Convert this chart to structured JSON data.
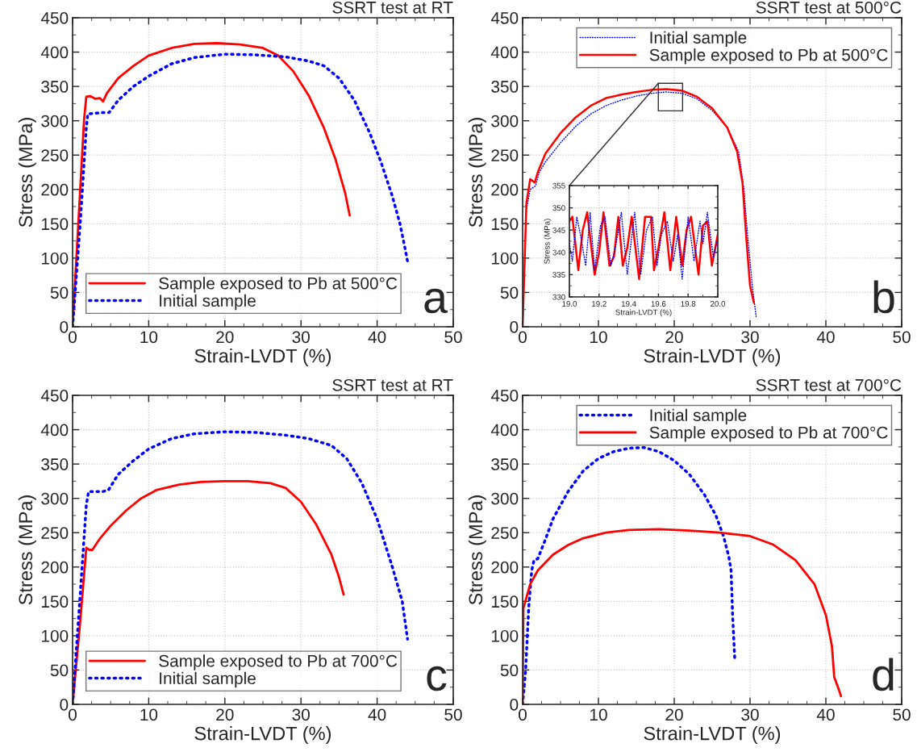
{
  "chart_data": [
    {
      "type": "line",
      "title": "SSRT test at RT",
      "xlabel": "Strain-LVDT (%)",
      "ylabel": "Stress (MPa)",
      "xlim": [
        0,
        50
      ],
      "ylim": [
        0,
        450
      ],
      "xticks": [
        0,
        10,
        20,
        30,
        40,
        50
      ],
      "yticks": [
        0,
        50,
        100,
        150,
        200,
        250,
        300,
        350,
        400,
        450
      ],
      "grid": true,
      "legend": "bottom left",
      "annotations": [
        "a"
      ],
      "series": [
        {
          "name": "Sample exposed to Pb at 500°C",
          "color": "#ff0000",
          "line_style": "solid",
          "x": [
            0,
            1.5,
            1.8,
            2.3,
            3,
            3.6,
            4,
            4.5,
            6,
            8,
            10,
            13,
            16,
            19,
            22,
            25,
            27,
            29,
            31,
            33,
            34.5,
            35.8,
            36.4
          ],
          "values": [
            0,
            300,
            335,
            336,
            332,
            333,
            328,
            340,
            362,
            380,
            395,
            406,
            412,
            413,
            411,
            406,
            395,
            372,
            337,
            290,
            245,
            195,
            162
          ]
        },
        {
          "name": "Initial sample",
          "color": "#0000ff",
          "line_style": "dotted",
          "x": [
            0,
            1,
            1.8,
            2,
            4,
            4.8,
            6,
            8,
            10,
            13,
            16,
            20,
            24,
            28,
            31,
            33,
            35,
            37,
            39,
            40.5,
            42,
            43,
            43.6,
            44
          ],
          "values": [
            0,
            150,
            290,
            310,
            312,
            312,
            330,
            350,
            365,
            383,
            392,
            397,
            396,
            393,
            387,
            380,
            362,
            330,
            283,
            240,
            190,
            150,
            118,
            95
          ]
        }
      ]
    },
    {
      "type": "line",
      "title": "SSRT test at 500°C",
      "xlabel": "Strain-LVDT (%)",
      "ylabel": "Stress (MPa)",
      "xlim": [
        0,
        50
      ],
      "ylim": [
        0,
        450
      ],
      "xticks": [
        0,
        10,
        20,
        30,
        40,
        50
      ],
      "yticks": [
        0,
        50,
        100,
        150,
        200,
        250,
        300,
        350,
        400,
        450
      ],
      "grid": true,
      "legend": "top right",
      "annotations": [
        "b"
      ],
      "series": [
        {
          "name": "Initial sample",
          "color": "#0000ff",
          "line_style": "dotted",
          "x": [
            0,
            0.5,
            1,
            1.7,
            2.2,
            3,
            5,
            7,
            9,
            11,
            13,
            15,
            17,
            19,
            21,
            23,
            25,
            27,
            28.5,
            29.2,
            29.7,
            30.3,
            30.8
          ],
          "values": [
            0,
            170,
            200,
            205,
            225,
            240,
            268,
            292,
            310,
            322,
            330,
            336,
            340,
            342,
            340,
            332,
            315,
            290,
            255,
            200,
            130,
            60,
            15
          ]
        },
        {
          "name": "Sample exposed to Pb at 500°C",
          "color": "#ff0000",
          "line_style": "solid",
          "x": [
            0,
            0.5,
            1,
            1.6,
            2,
            3,
            5,
            7,
            9,
            11,
            13,
            15,
            17,
            19,
            21,
            23,
            25,
            27,
            28.3,
            29,
            29.5,
            30,
            30.5
          ],
          "values": [
            0,
            180,
            215,
            210,
            225,
            252,
            282,
            305,
            322,
            333,
            338,
            342,
            345,
            346,
            344,
            335,
            318,
            290,
            255,
            210,
            130,
            60,
            35
          ]
        }
      ]
    },
    {
      "type": "line",
      "xlabel": "Strain-LVDT (%)",
      "ylabel": "Stress (MPa)",
      "xlim": [
        19.0,
        20.0
      ],
      "ylim": [
        330,
        355
      ],
      "xticks": [
        {
          "value": 19.0,
          "label": "19.0"
        },
        {
          "value": 19.2,
          "label": "19.2"
        },
        {
          "value": 19.4,
          "label": "19.4"
        },
        {
          "value": 19.6,
          "label": "19.6"
        },
        {
          "value": 19.8,
          "label": "19.8"
        },
        {
          "value": 20.0,
          "label": "20.0"
        }
      ],
      "yticks": [
        330,
        335,
        340,
        345,
        350,
        355
      ],
      "grid": true,
      "series": [
        {
          "color": "#ff0000",
          "line_style": "solid",
          "x": [
            19.0,
            19.02,
            19.06,
            19.09,
            19.12,
            19.17,
            19.2,
            19.23,
            19.27,
            19.3,
            19.33,
            19.36,
            19.39,
            19.42,
            19.47,
            19.51,
            19.55,
            19.57,
            19.6,
            19.64,
            19.68,
            19.72,
            19.76,
            19.79,
            19.82,
            19.87,
            19.9,
            19.93,
            19.96,
            20.0
          ],
          "values": [
            347,
            348,
            336,
            345,
            349,
            335,
            340,
            349,
            337,
            339,
            348,
            337,
            341,
            348,
            334,
            348,
            348,
            336,
            341,
            349,
            336,
            348,
            337,
            345,
            348,
            335,
            346,
            347,
            337,
            344
          ]
        },
        {
          "color": "#0000ff",
          "line_style": "dotted",
          "x": [
            19.0,
            19.02,
            19.05,
            19.08,
            19.11,
            19.14,
            19.17,
            19.21,
            19.24,
            19.28,
            19.31,
            19.35,
            19.39,
            19.44,
            19.48,
            19.52,
            19.56,
            19.59,
            19.62,
            19.66,
            19.7,
            19.73,
            19.76,
            19.8,
            19.84,
            19.88,
            19.9,
            19.93,
            19.97,
            20.0
          ],
          "values": [
            342,
            338,
            348,
            343,
            337,
            349,
            336,
            346,
            348,
            337,
            341,
            349,
            335,
            349,
            335,
            345,
            348,
            337,
            344,
            347,
            338,
            344,
            334,
            348,
            338,
            347,
            342,
            349,
            339,
            343
          ]
        }
      ]
    },
    {
      "type": "line",
      "title": "SSRT test at RT",
      "xlabel": "Strain-LVDT (%)",
      "ylabel": "Stress (MPa)",
      "xlim": [
        0,
        50
      ],
      "ylim": [
        0,
        450
      ],
      "xticks": [
        0,
        10,
        20,
        30,
        40,
        50
      ],
      "yticks": [
        0,
        50,
        100,
        150,
        200,
        250,
        300,
        350,
        400,
        450
      ],
      "grid": true,
      "legend": "bottom left",
      "annotations": [
        "c"
      ],
      "series": [
        {
          "name": "Sample exposed to Pb at 700°C",
          "color": "#ff0000",
          "line_style": "solid",
          "x": [
            0,
            1,
            1.8,
            2.2,
            2.6,
            3.5,
            5,
            7,
            9,
            11,
            14,
            17,
            20,
            23,
            26,
            28,
            30,
            32,
            34,
            35,
            35.6
          ],
          "values": [
            0,
            120,
            228,
            225,
            225,
            240,
            260,
            282,
            300,
            312,
            320,
            324,
            325,
            325,
            322,
            315,
            295,
            262,
            218,
            185,
            160
          ]
        },
        {
          "name": "Initial sample",
          "color": "#0000ff",
          "line_style": "dotted",
          "x": [
            0,
            1,
            1.8,
            2.1,
            4,
            4.7,
            6,
            8,
            10,
            13,
            16,
            20,
            24,
            28,
            31,
            34,
            36,
            38,
            40,
            42,
            43.3,
            44
          ],
          "values": [
            0,
            160,
            290,
            310,
            310,
            312,
            335,
            355,
            372,
            387,
            394,
            397,
            396,
            392,
            387,
            377,
            358,
            322,
            270,
            200,
            150,
            95
          ]
        }
      ]
    },
    {
      "type": "line",
      "title": "SSRT test at 700°C",
      "xlabel": "Strain-LVDT (%)",
      "ylabel": "Stress (MPa)",
      "xlim": [
        0,
        50
      ],
      "ylim": [
        0,
        450
      ],
      "xticks": [
        0,
        10,
        20,
        30,
        40,
        50
      ],
      "yticks": [
        0,
        50,
        100,
        150,
        200,
        250,
        300,
        350,
        400,
        450
      ],
      "grid": true,
      "legend": "top right",
      "annotations": [
        "d"
      ],
      "series": [
        {
          "name": "Initial sample",
          "color": "#0000ff",
          "line_style": "dotted",
          "x": [
            0,
            0.4,
            0.8,
            1.2,
            1.5,
            2,
            3,
            4,
            6,
            8,
            10,
            12,
            14,
            16,
            18,
            20,
            22,
            24,
            25.5,
            26.5,
            27.2,
            27.5,
            27.7,
            28
          ],
          "values": [
            0,
            50,
            140,
            195,
            210,
            212,
            240,
            270,
            310,
            340,
            358,
            368,
            373,
            374,
            368,
            355,
            335,
            305,
            275,
            245,
            215,
            195,
            130,
            62
          ]
        },
        {
          "name": "Sample exposed to Pb at 700°C",
          "color": "#ff0000",
          "line_style": "solid",
          "x": [
            0,
            0.1,
            1,
            2,
            4,
            6,
            8,
            11,
            14,
            18,
            22,
            26,
            30,
            33,
            36,
            38.5,
            40,
            40.8,
            41.1,
            41.6,
            42
          ],
          "values": [
            0,
            140,
            175,
            195,
            218,
            232,
            242,
            250,
            254,
            255,
            253,
            250,
            245,
            233,
            210,
            175,
            130,
            85,
            40,
            25,
            12
          ]
        }
      ]
    }
  ]
}
